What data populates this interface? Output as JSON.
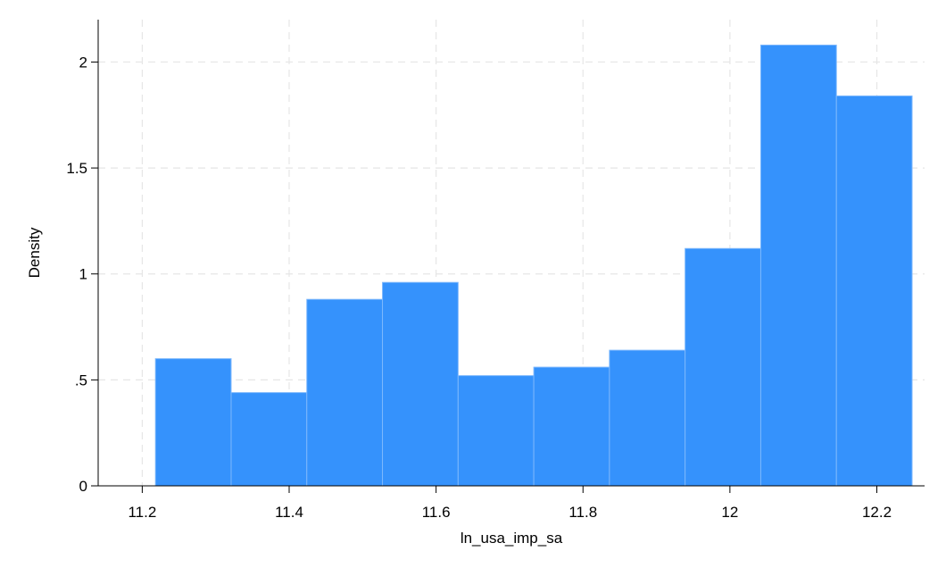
{
  "chart_data": {
    "type": "bar",
    "subtype": "histogram",
    "title": "",
    "xlabel": "ln_usa_imp_sa",
    "ylabel": "Density",
    "xlim": [
      11.14,
      12.265
    ],
    "ylim": [
      0,
      2.2
    ],
    "grid": true,
    "legend": "none",
    "bar_color": "#3592FC",
    "bar_edge_color": "#7DB8FD",
    "x_ticks": [
      {
        "value": 11.2,
        "label": "11.2"
      },
      {
        "value": 11.4,
        "label": "11.4"
      },
      {
        "value": 11.6,
        "label": "11.6"
      },
      {
        "value": 11.8,
        "label": "11.8"
      },
      {
        "value": 12.0,
        "label": "12"
      },
      {
        "value": 12.2,
        "label": "12.2"
      }
    ],
    "y_ticks": [
      {
        "value": 0,
        "label": "0"
      },
      {
        "value": 0.5,
        "label": ".5"
      },
      {
        "value": 1.0,
        "label": "1"
      },
      {
        "value": 1.5,
        "label": "1.5"
      },
      {
        "value": 2.0,
        "label": "2"
      }
    ],
    "bins": [
      {
        "x0": 11.218,
        "x1": 11.321,
        "density": 0.6
      },
      {
        "x0": 11.321,
        "x1": 11.424,
        "density": 0.44
      },
      {
        "x0": 11.424,
        "x1": 11.527,
        "density": 0.88
      },
      {
        "x0": 11.527,
        "x1": 11.63,
        "density": 0.96
      },
      {
        "x0": 11.63,
        "x1": 11.733,
        "density": 0.52
      },
      {
        "x0": 11.733,
        "x1": 11.836,
        "density": 0.56
      },
      {
        "x0": 11.836,
        "x1": 11.939,
        "density": 0.64
      },
      {
        "x0": 11.939,
        "x1": 12.042,
        "density": 1.12
      },
      {
        "x0": 12.042,
        "x1": 12.145,
        "density": 2.08
      },
      {
        "x0": 12.145,
        "x1": 12.248,
        "density": 1.84
      }
    ]
  }
}
